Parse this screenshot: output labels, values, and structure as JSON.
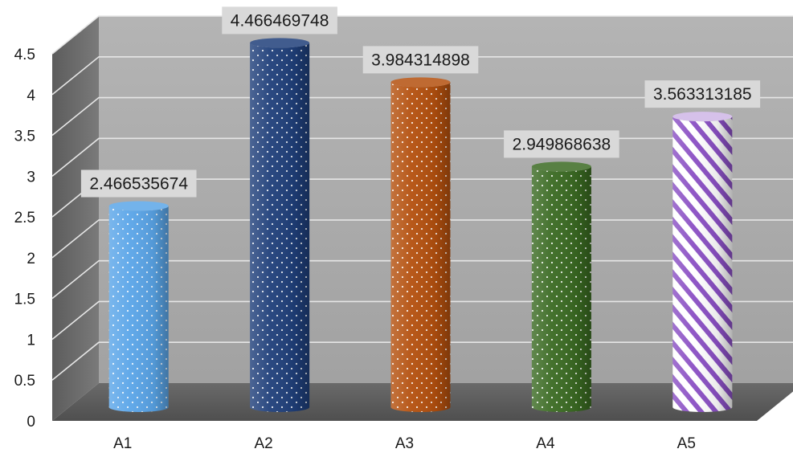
{
  "chart_data": {
    "type": "bar",
    "title": "",
    "xlabel": "",
    "ylabel": "",
    "categories": [
      "A1",
      "A2",
      "A3",
      "A4",
      "A5"
    ],
    "values": [
      2.466535674,
      4.466469748,
      3.984314898,
      2.949868638,
      3.563313185
    ],
    "data_labels": [
      "2.466535674",
      "4.466469748",
      "3.984314898",
      "2.949868638",
      "3.563313185"
    ],
    "ylim": [
      0,
      4.5
    ],
    "yticks": [
      "0",
      "0.5",
      "1",
      "1.5",
      "2",
      "2.5",
      "3",
      "3.5",
      "4",
      "4.5"
    ],
    "grid": true,
    "legend": "none",
    "style": "3d-cylinder",
    "colors": [
      "#5aa5e8",
      "#1f3f7a",
      "#b4500e",
      "#3a6a22",
      "#8a4fc4"
    ],
    "patterns": [
      "dots",
      "dots",
      "dots",
      "dots",
      "diagonal-stripes"
    ],
    "wall_color": "#a9a9a9",
    "floor_color": "#595959"
  }
}
